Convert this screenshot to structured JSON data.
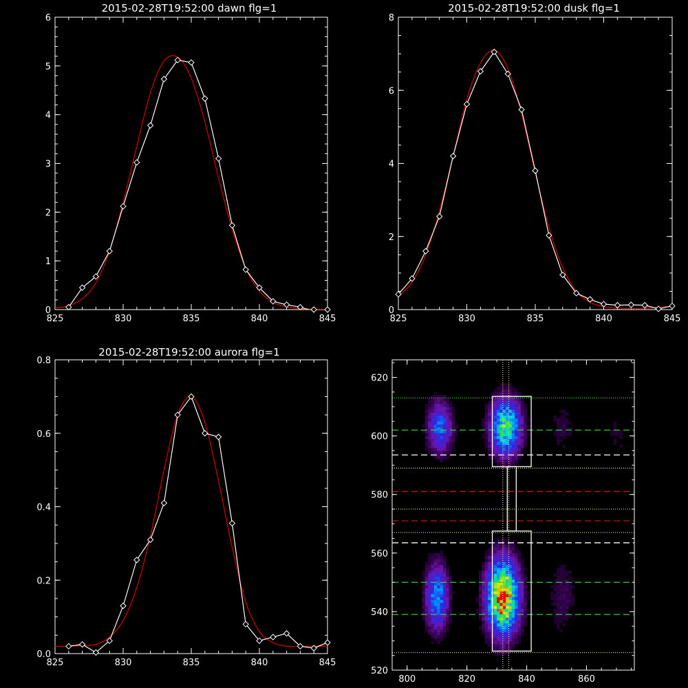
{
  "colors": {
    "background": "#000000",
    "axis": "#ffffff",
    "data_line": "#ffffff",
    "fit_line": "#cc0000",
    "green_dash": "#33cc33",
    "red_dash": "#cc1111",
    "white_dash": "#ffffff",
    "dotted": "#dddd88"
  },
  "chart_data": [
    {
      "type": "line",
      "title": "2015-02-28T19:52:00 dawn flg=1",
      "xlim": [
        825,
        845
      ],
      "ylim": [
        0,
        6
      ],
      "xticks": [
        825,
        830,
        835,
        840,
        845
      ],
      "yticks": [
        0,
        1,
        2,
        3,
        4,
        5,
        6
      ],
      "series": [
        {
          "role": "data",
          "marker": "diamond",
          "x": [
            826,
            827,
            828,
            829,
            830,
            831,
            832,
            833,
            834,
            835,
            836,
            837,
            838,
            839,
            840,
            841,
            842,
            843,
            844,
            845
          ],
          "y": [
            0.05,
            0.45,
            0.68,
            1.2,
            2.12,
            3.02,
            3.78,
            4.73,
            5.12,
            5.07,
            4.33,
            3.1,
            1.73,
            0.82,
            0.45,
            0.17,
            0.1,
            0.05,
            -0.03,
            -0.02
          ]
        },
        {
          "role": "fit",
          "x": [
            825,
            826,
            827,
            828,
            829,
            830,
            831,
            832,
            833,
            834,
            835,
            836,
            837,
            838,
            839,
            840,
            841,
            842,
            843,
            844,
            845
          ],
          "y": [
            0.03,
            0.08,
            0.22,
            0.55,
            1.2,
            2.2,
            3.35,
            4.45,
            5.1,
            5.18,
            4.75,
            3.85,
            2.7,
            1.65,
            0.85,
            0.38,
            0.15,
            0.06,
            0.02,
            0.01,
            0.0
          ]
        }
      ]
    },
    {
      "type": "line",
      "title": "2015-02-28T19:52:00 dusk flg=1",
      "xlim": [
        825,
        845
      ],
      "ylim": [
        0,
        8
      ],
      "xticks": [
        825,
        830,
        835,
        840,
        845
      ],
      "yticks": [
        0,
        2,
        4,
        6,
        8
      ],
      "series": [
        {
          "role": "data",
          "marker": "diamond",
          "x": [
            825,
            826,
            827,
            828,
            829,
            830,
            831,
            832,
            833,
            834,
            835,
            836,
            837,
            838,
            839,
            840,
            841,
            842,
            843,
            844,
            845
          ],
          "y": [
            0.42,
            0.85,
            1.6,
            2.55,
            4.2,
            5.62,
            6.52,
            7.05,
            6.45,
            5.47,
            3.8,
            2.03,
            0.95,
            0.45,
            0.28,
            0.15,
            0.12,
            0.13,
            0.12,
            0.02,
            0.1
          ]
        },
        {
          "role": "fit",
          "x": [
            825,
            826,
            827,
            828,
            829,
            830,
            831,
            832,
            833,
            834,
            835,
            836,
            837,
            838,
            839,
            840,
            841,
            842,
            843,
            844,
            845
          ],
          "y": [
            0.35,
            0.75,
            1.5,
            2.7,
            4.2,
            5.75,
            6.75,
            7.1,
            6.6,
            5.35,
            3.75,
            2.25,
            1.15,
            0.5,
            0.2,
            0.08,
            0.04,
            0.03,
            0.04,
            0.06,
            0.1
          ]
        }
      ]
    },
    {
      "type": "line",
      "title": "2015-02-28T19:52:00 aurora flg=1",
      "xlim": [
        825,
        845
      ],
      "ylim": [
        0,
        0.8
      ],
      "xticks": [
        825,
        830,
        835,
        840,
        845
      ],
      "yticks": [
        0.0,
        0.2,
        0.4,
        0.6,
        0.8
      ],
      "ytick_labels": [
        "0.0",
        "0.2",
        "0.4",
        "0.6",
        "0.8"
      ],
      "series": [
        {
          "role": "data",
          "marker": "diamond",
          "x": [
            826,
            827,
            828,
            829,
            830,
            831,
            832,
            833,
            834,
            835,
            836,
            837,
            838,
            839,
            840,
            841,
            842,
            843,
            844,
            845
          ],
          "y": [
            0.02,
            0.025,
            0.003,
            0.035,
            0.13,
            0.255,
            0.31,
            0.41,
            0.65,
            0.7,
            0.6,
            0.59,
            0.355,
            0.08,
            0.035,
            0.045,
            0.055,
            0.02,
            0.015,
            0.03
          ]
        },
        {
          "role": "fit",
          "x": [
            825,
            826,
            827,
            828,
            829,
            830,
            831,
            832,
            833,
            834,
            835,
            836,
            837,
            838,
            839,
            840,
            841,
            842,
            843,
            844,
            845
          ],
          "y": [
            0.02,
            0.02,
            0.022,
            0.025,
            0.045,
            0.09,
            0.18,
            0.32,
            0.5,
            0.65,
            0.7,
            0.63,
            0.47,
            0.29,
            0.14,
            0.06,
            0.03,
            0.02,
            0.02,
            0.02,
            0.02
          ]
        }
      ]
    },
    {
      "type": "heatmap",
      "title": "",
      "xlim": [
        795,
        876
      ],
      "ylim": [
        520,
        626
      ],
      "xticks": [
        800,
        820,
        840,
        860
      ],
      "yticks": [
        520,
        540,
        560,
        580,
        600,
        620
      ],
      "blobs": [
        {
          "x": 810,
          "y": 545,
          "sx": 2.6,
          "sy": 7.5,
          "amp": 0.5
        },
        {
          "x": 832,
          "y": 545,
          "sx": 3.6,
          "sy": 8.5,
          "amp": 1.0
        },
        {
          "x": 811,
          "y": 603,
          "sx": 2.8,
          "sy": 6.0,
          "amp": 0.42
        },
        {
          "x": 833,
          "y": 603,
          "sx": 3.4,
          "sy": 6.5,
          "amp": 0.72
        },
        {
          "x": 852,
          "y": 545,
          "sx": 3.5,
          "sy": 10,
          "amp": 0.1
        },
        {
          "x": 852,
          "y": 603,
          "sx": 3.5,
          "sy": 7,
          "amp": 0.08
        },
        {
          "x": 870,
          "y": 600,
          "sx": 2.5,
          "sy": 7,
          "amp": 0.07
        }
      ],
      "boxes": [
        {
          "x0": 828.5,
          "x1": 841.5,
          "y0": 589.5,
          "y1": 613.5
        },
        {
          "x0": 828.5,
          "x1": 841.5,
          "y0": 526.5,
          "y1": 567.5
        },
        {
          "x0": 833.5,
          "x1": 836.5,
          "y0": 567.5,
          "y1": 589.5
        }
      ],
      "hlines": [
        {
          "y": 613,
          "style": "dotted",
          "color": "green"
        },
        {
          "y": 602,
          "style": "dashed",
          "color": "green"
        },
        {
          "y": 593.5,
          "style": "dashed",
          "color": "white"
        },
        {
          "y": 589,
          "style": "dotted",
          "color": "white"
        },
        {
          "y": 581,
          "style": "dashed",
          "color": "red"
        },
        {
          "y": 575,
          "style": "dotted",
          "color": "white"
        },
        {
          "y": 571,
          "style": "dashed",
          "color": "red"
        },
        {
          "y": 567,
          "style": "dotted",
          "color": "white"
        },
        {
          "y": 563.5,
          "style": "dashed",
          "color": "white"
        },
        {
          "y": 550,
          "style": "dashed",
          "color": "green"
        },
        {
          "y": 539,
          "style": "dashed",
          "color": "green"
        },
        {
          "y": 526,
          "style": "dotted",
          "color": "white"
        }
      ],
      "vlines": [
        {
          "x": 832,
          "style": "dotted"
        },
        {
          "x": 834,
          "style": "dotted"
        }
      ]
    }
  ]
}
